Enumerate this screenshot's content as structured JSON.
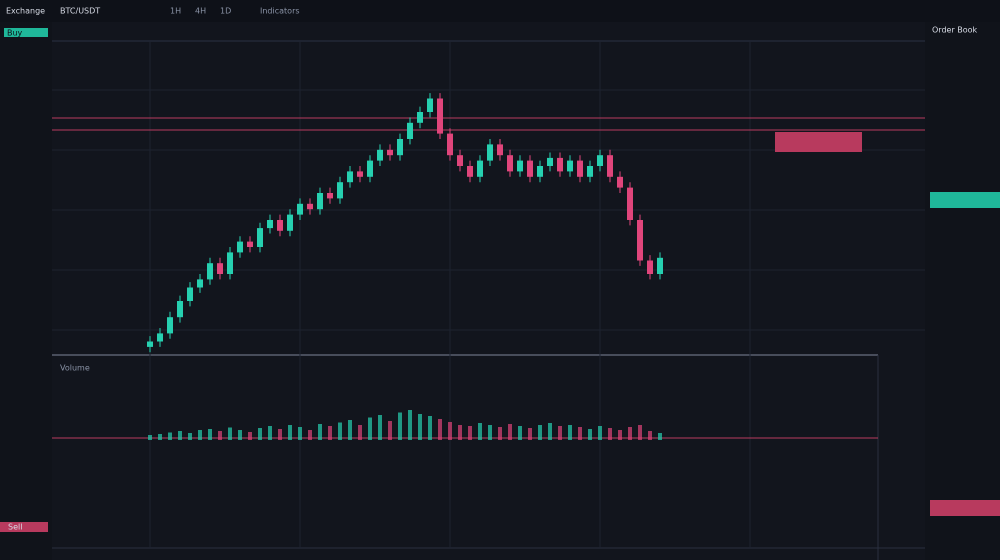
{
  "ui": {
    "brand": "Exchange",
    "pair": "BTC/USDT",
    "timeframes": [
      "1H",
      "4H",
      "1D"
    ],
    "indicators": "Indicators",
    "order_book": "Order Book",
    "buy": "Buy",
    "sell": "Sell",
    "volume_label": "Volume"
  },
  "chart_data": {
    "type": "candlestick",
    "colors": {
      "up": "#26d0b0",
      "down": "#e0457b"
    },
    "ylim": [
      0,
      100
    ],
    "volume_ylim": [
      0,
      100
    ],
    "open": [
      3,
      5,
      8,
      14,
      20,
      25,
      28,
      34,
      30,
      38,
      42,
      40,
      47,
      50,
      46,
      52,
      56,
      54,
      60,
      58,
      64,
      68,
      66,
      72,
      76,
      74,
      80,
      86,
      90,
      95,
      82,
      74,
      70,
      66,
      72,
      78,
      74,
      68,
      72,
      66,
      70,
      73,
      68,
      72,
      66,
      70,
      74,
      66,
      62,
      50,
      35,
      30
    ],
    "high": [
      7,
      10,
      16,
      22,
      27,
      30,
      36,
      36,
      40,
      44,
      44,
      49,
      52,
      52,
      54,
      58,
      58,
      62,
      62,
      66,
      70,
      70,
      74,
      78,
      78,
      82,
      88,
      92,
      97,
      97,
      84,
      76,
      72,
      74,
      80,
      80,
      76,
      74,
      74,
      72,
      75,
      75,
      74,
      74,
      72,
      76,
      76,
      68,
      64,
      52,
      37,
      38
    ],
    "low": [
      1,
      3,
      6,
      12,
      18,
      23,
      26,
      28,
      28,
      36,
      38,
      38,
      45,
      44,
      44,
      50,
      52,
      52,
      56,
      56,
      62,
      64,
      64,
      70,
      72,
      72,
      78,
      84,
      88,
      80,
      72,
      68,
      64,
      64,
      70,
      72,
      66,
      66,
      64,
      64,
      68,
      66,
      66,
      64,
      64,
      68,
      64,
      60,
      48,
      33,
      28,
      28
    ],
    "close": [
      5,
      8,
      14,
      20,
      25,
      28,
      34,
      30,
      38,
      42,
      40,
      47,
      50,
      46,
      52,
      56,
      54,
      60,
      58,
      64,
      68,
      66,
      72,
      76,
      74,
      80,
      86,
      90,
      95,
      82,
      74,
      70,
      66,
      72,
      78,
      74,
      68,
      72,
      66,
      70,
      73,
      68,
      72,
      66,
      70,
      74,
      66,
      62,
      50,
      35,
      30,
      36
    ],
    "volume": [
      10,
      12,
      15,
      18,
      14,
      20,
      22,
      18,
      25,
      20,
      16,
      24,
      28,
      22,
      30,
      26,
      20,
      32,
      28,
      35,
      40,
      30,
      45,
      50,
      38,
      55,
      60,
      52,
      48,
      42,
      36,
      30,
      28,
      34,
      30,
      26,
      32,
      28,
      24,
      30,
      34,
      28,
      30,
      26,
      22,
      28,
      24,
      20,
      26,
      30,
      18,
      14
    ]
  }
}
